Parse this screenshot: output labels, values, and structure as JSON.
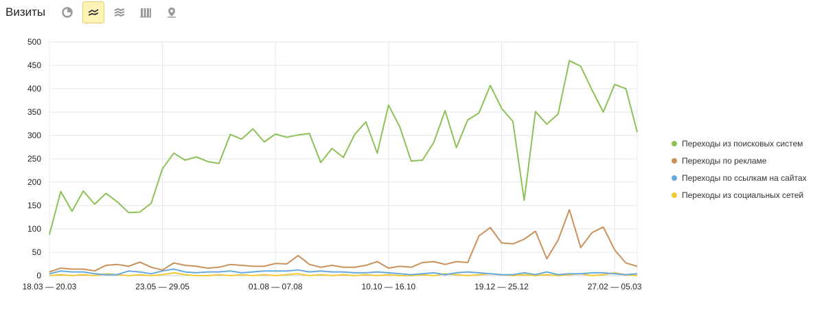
{
  "header": {
    "title": "Визиты"
  },
  "toolbar": {
    "buttons": [
      {
        "icon": "pie-chart-icon",
        "active": false
      },
      {
        "icon": "line-chart-icon",
        "active": true
      },
      {
        "icon": "area-chart-icon",
        "active": false
      },
      {
        "icon": "bar-chart-icon",
        "active": false
      },
      {
        "icon": "map-pin-icon",
        "active": false
      }
    ]
  },
  "colors": {
    "search": "#8dc055",
    "ads": "#c9905a",
    "links": "#66a9dd",
    "social": "#f2c934",
    "active_tool_bg": "#fff3b8",
    "icon": "#9a9a9a"
  },
  "chart_data": {
    "type": "line",
    "ylim": [
      0,
      500
    ],
    "yticks": [
      0,
      50,
      100,
      150,
      200,
      250,
      300,
      350,
      400,
      450,
      500
    ],
    "x_tick_labels": [
      {
        "index": 0,
        "label": "18.03 — 20.03"
      },
      {
        "index": 10,
        "label": "23.05 — 29.05"
      },
      {
        "index": 20,
        "label": "01.08 — 07.08"
      },
      {
        "index": 30,
        "label": "10.10 — 16.10"
      },
      {
        "index": 40,
        "label": "19.12 — 25.12"
      },
      {
        "index": 50,
        "label": "27.02 — 05.03"
      }
    ],
    "grid": true,
    "legend_position": "right",
    "series": [
      {
        "name": "Переходы из поисковых систем",
        "color_key": "search",
        "values": [
          88,
          180,
          138,
          181,
          153,
          176,
          158,
          135,
          136,
          155,
          229,
          262,
          247,
          254,
          244,
          240,
          302,
          292,
          314,
          286,
          303,
          296,
          301,
          304,
          242,
          272,
          253,
          302,
          329,
          262,
          365,
          318,
          245,
          247,
          285,
          353,
          274,
          333,
          348,
          407,
          358,
          330,
          161,
          351,
          324,
          346,
          460,
          448,
          397,
          350,
          409,
          400,
          307
        ]
      },
      {
        "name": "Переходы по рекламе",
        "color_key": "ads",
        "values": [
          8,
          16,
          14,
          14,
          10,
          22,
          24,
          20,
          29,
          18,
          12,
          27,
          22,
          20,
          16,
          18,
          24,
          22,
          20,
          20,
          26,
          25,
          43,
          24,
          18,
          22,
          18,
          18,
          22,
          30,
          16,
          20,
          18,
          28,
          30,
          24,
          30,
          28,
          85,
          103,
          70,
          68,
          78,
          95,
          36,
          76,
          141,
          60,
          92,
          104,
          55,
          27,
          20
        ]
      },
      {
        "name": "Переходы по ссылкам на сайтах",
        "color_key": "links",
        "values": [
          4,
          10,
          8,
          8,
          4,
          2,
          2,
          10,
          8,
          4,
          10,
          14,
          8,
          6,
          8,
          8,
          10,
          6,
          8,
          10,
          10,
          10,
          12,
          8,
          10,
          8,
          8,
          6,
          6,
          8,
          6,
          4,
          2,
          4,
          6,
          2,
          6,
          8,
          6,
          4,
          2,
          2,
          6,
          2,
          8,
          2,
          4,
          4,
          6,
          6,
          4,
          2,
          4
        ]
      },
      {
        "name": "Переходы из социальных сетей",
        "color_key": "social",
        "values": [
          0,
          2,
          0,
          2,
          0,
          4,
          2,
          0,
          2,
          0,
          2,
          6,
          2,
          0,
          0,
          2,
          0,
          2,
          0,
          2,
          0,
          2,
          4,
          0,
          2,
          0,
          2,
          0,
          2,
          0,
          2,
          0,
          0,
          2,
          0,
          4,
          2,
          0,
          2,
          4,
          2,
          0,
          2,
          0,
          2,
          0,
          2,
          4,
          0,
          2,
          6,
          2,
          0
        ]
      }
    ]
  }
}
